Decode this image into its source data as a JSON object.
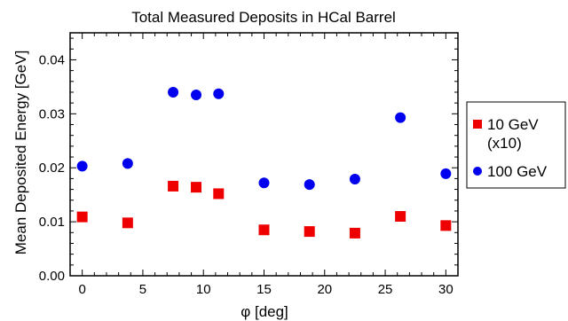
{
  "chart_data": {
    "type": "scatter",
    "title": "Total Measured Deposits in HCal Barrel",
    "xlabel": "φ [deg]",
    "ylabel": "Mean Deposited Energy [GeV]",
    "xlim": [
      -1,
      31
    ],
    "ylim": [
      0,
      0.045
    ],
    "x_ticks": [
      0,
      5,
      10,
      15,
      20,
      25,
      30
    ],
    "x_tick_labels": [
      "0",
      "5",
      "10",
      "15",
      "20",
      "25",
      "30"
    ],
    "y_ticks": [
      0,
      0.01,
      0.02,
      0.03,
      0.04
    ],
    "y_tick_labels": [
      "0.00",
      "0.01",
      "0.02",
      "0.03",
      "0.04"
    ],
    "legend_position": "right",
    "series": [
      {
        "name": "10 GeV (x10)",
        "name_lines": [
          "10 GeV",
          "(x10)"
        ],
        "marker": "square",
        "color": "#ee0000",
        "x": [
          0,
          3.75,
          7.5,
          9.4,
          11.25,
          15,
          18.75,
          22.5,
          26.25,
          30
        ],
        "y": [
          0.0109,
          0.0098,
          0.0166,
          0.0164,
          0.0152,
          0.0085,
          0.0082,
          0.0079,
          0.011,
          0.0093
        ]
      },
      {
        "name": "100 GeV",
        "name_lines": [
          "100 GeV"
        ],
        "marker": "circle",
        "color": "#0000ee",
        "x": [
          0,
          3.75,
          7.5,
          9.4,
          11.25,
          15,
          18.75,
          22.5,
          26.25,
          30
        ],
        "y": [
          0.0203,
          0.0208,
          0.034,
          0.0335,
          0.0337,
          0.0172,
          0.0169,
          0.0179,
          0.0293,
          0.0189
        ]
      }
    ]
  }
}
